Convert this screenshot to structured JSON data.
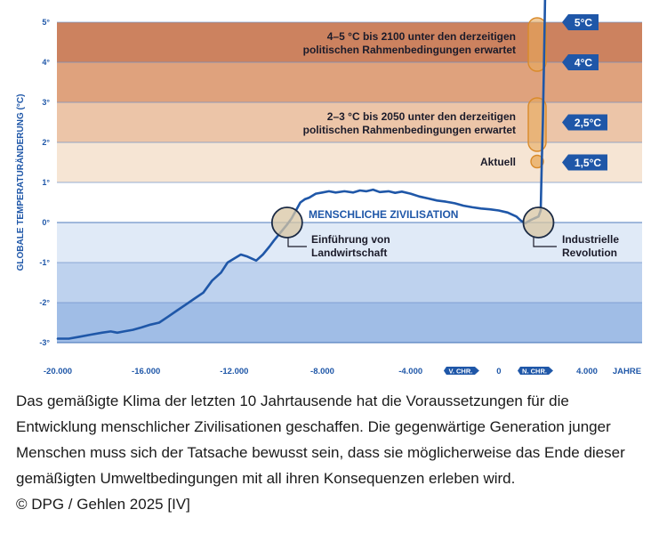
{
  "chart_data": {
    "type": "line",
    "title": "",
    "xlabel": "JAHRE",
    "ylabel": "GLOBALE TEMPERATURÄNDERUNG (°C)",
    "xlim": [
      -20000,
      6500
    ],
    "ylim": [
      -3.1,
      5.5
    ],
    "x_ticks": [
      {
        "value": -20000,
        "label": "-20.000"
      },
      {
        "value": -16000,
        "label": "-16.000"
      },
      {
        "value": -12000,
        "label": "-12.000"
      },
      {
        "value": -8000,
        "label": "-8.000"
      },
      {
        "value": -4000,
        "label": "-4.000"
      },
      {
        "value": 0,
        "label": "0"
      },
      {
        "value": 4000,
        "label": "4.000"
      }
    ],
    "x_unit_label": "JAHRE",
    "era_labels": [
      {
        "value": -1650,
        "label": "V. CHR."
      },
      {
        "value": 1700,
        "label": "N. CHR."
      }
    ],
    "y_ticks": [
      {
        "value": 5,
        "label": "5°"
      },
      {
        "value": 4,
        "label": "4°"
      },
      {
        "value": 3,
        "label": "3°"
      },
      {
        "value": 2,
        "label": "2°"
      },
      {
        "value": 1,
        "label": "1°"
      },
      {
        "value": 0,
        "label": "0°"
      },
      {
        "value": -1,
        "label": "-1°"
      },
      {
        "value": -2,
        "label": "-2°"
      },
      {
        "value": -3,
        "label": "-3°"
      }
    ],
    "bands": [
      {
        "from": 4,
        "to": 5,
        "color": "#cc825f"
      },
      {
        "from": 3,
        "to": 4,
        "color": "#dfa27d"
      },
      {
        "from": 2,
        "to": 3,
        "color": "#ecc5a8"
      },
      {
        "from": 1,
        "to": 2,
        "color": "#f6e5d4"
      },
      {
        "from": 0,
        "to": 1,
        "color": "#ffffff"
      },
      {
        "from": -1,
        "to": 0,
        "color": "#e0eaf7"
      },
      {
        "from": -2,
        "to": -1,
        "color": "#bed2ee"
      },
      {
        "from": -3,
        "to": -2,
        "color": "#a0bde6"
      }
    ],
    "series": [
      {
        "name": "Globale Temperaturänderung",
        "color": "#1f57a8",
        "x": [
          -20000,
          -19500,
          -19000,
          -18500,
          -18000,
          -17600,
          -17300,
          -17000,
          -16600,
          -16200,
          -15800,
          -15400,
          -15000,
          -14600,
          -14200,
          -13800,
          -13400,
          -13000,
          -12600,
          -12300,
          -12000,
          -11700,
          -11400,
          -11000,
          -10700,
          -10400,
          -10200,
          -9900,
          -9600,
          -9400,
          -9200,
          -9000,
          -8800,
          -8600,
          -8300,
          -8000,
          -7700,
          -7400,
          -7000,
          -6600,
          -6300,
          -6000,
          -5700,
          -5400,
          -5000,
          -4700,
          -4400,
          -4000,
          -3600,
          -3200,
          -2800,
          -2400,
          -2000,
          -1600,
          -1200,
          -800,
          -400,
          0,
          400,
          800,
          1000,
          1200,
          1400,
          1600,
          1800,
          1900,
          1950,
          2000,
          2050,
          2100
        ],
        "y": [
          -2.9,
          -2.9,
          -2.85,
          -2.8,
          -2.75,
          -2.72,
          -2.75,
          -2.72,
          -2.68,
          -2.62,
          -2.55,
          -2.5,
          -2.35,
          -2.2,
          -2.05,
          -1.9,
          -1.75,
          -1.45,
          -1.25,
          -1.0,
          -0.9,
          -0.8,
          -0.85,
          -0.95,
          -0.8,
          -0.6,
          -0.45,
          -0.25,
          -0.05,
          0.1,
          0.3,
          0.5,
          0.58,
          0.62,
          0.72,
          0.75,
          0.78,
          0.75,
          0.78,
          0.75,
          0.8,
          0.78,
          0.82,
          0.76,
          0.78,
          0.74,
          0.77,
          0.72,
          0.65,
          0.6,
          0.55,
          0.52,
          0.48,
          0.42,
          0.38,
          0.35,
          0.33,
          0.3,
          0.25,
          0.15,
          0.05,
          -0.02,
          0.05,
          0.1,
          0.15,
          0.3,
          1.5,
          2.5,
          4.0,
          5.6
        ]
      }
    ],
    "annotations": [
      {
        "id": "scen-high",
        "text_lines": [
          "4–5 °C bis 2100 unter den derzeitigen",
          "politischen Rahmenbedingungen erwartet"
        ]
      },
      {
        "id": "scen-mid",
        "text_lines": [
          "2–3 °C bis 2050 unter den derzeitigen",
          "politischen Rahmenbedingungen erwartet"
        ]
      },
      {
        "id": "aktuell",
        "text_lines": [
          "Aktuell"
        ]
      },
      {
        "id": "zivilisation",
        "text_lines": [
          "MENSCHLICHE ZIVILISATION"
        ]
      },
      {
        "id": "landwirtschaft",
        "text_lines": [
          "Einführung von",
          "Landwirtschaft"
        ]
      },
      {
        "id": "industrie",
        "text_lines": [
          "Industrielle",
          "Revolution"
        ]
      }
    ],
    "markers": [
      {
        "label": "5°C",
        "value": 5
      },
      {
        "label": "4°C",
        "value": 4
      },
      {
        "label": "2,5°C",
        "value": 2.5
      },
      {
        "label": "1,5°C",
        "value": 1.5
      }
    ],
    "highlight_circles": [
      {
        "x": -9600,
        "y": 0,
        "name": "agriculture-circle"
      },
      {
        "x": 1800,
        "y": 0,
        "name": "industrial-circle"
      }
    ],
    "scenario_ranges": [
      {
        "from": 4,
        "to": 5,
        "x": 1950,
        "name": "range-4-5"
      },
      {
        "from": 2,
        "to": 3,
        "x": 1950,
        "name": "range-2-3"
      },
      {
        "from": 1.5,
        "to": 1.5,
        "x": 1950,
        "name": "range-aktuell"
      }
    ],
    "colors": {
      "line": "#1f57a8",
      "marker_bg": "#1f57a8",
      "circle_fill": "#d8c5a3",
      "circle_stroke": "#1b2a44",
      "range_fill": "#e8a85a",
      "range_stroke": "#d98a2a",
      "axis_text": "#1f57a8",
      "text_dark": "#1b1b2a",
      "grid": "#5a7fbf"
    }
  },
  "caption": {
    "text": "Das gemäßigte Klima der letzten 10 Jahrtausende hat die Voraussetzungen für die Entwicklung menschlicher Zivilisationen geschaffen. Die gegenwärtige Generation junger Menschen muss sich der Tatsache bewusst sein, dass sie möglicherweise das Ende dieser gemäßigten Umweltbedingungen mit all ihren Konsequenzen erleben wird.",
    "credit": "© DPG / Gehlen 2025 [IV]"
  }
}
